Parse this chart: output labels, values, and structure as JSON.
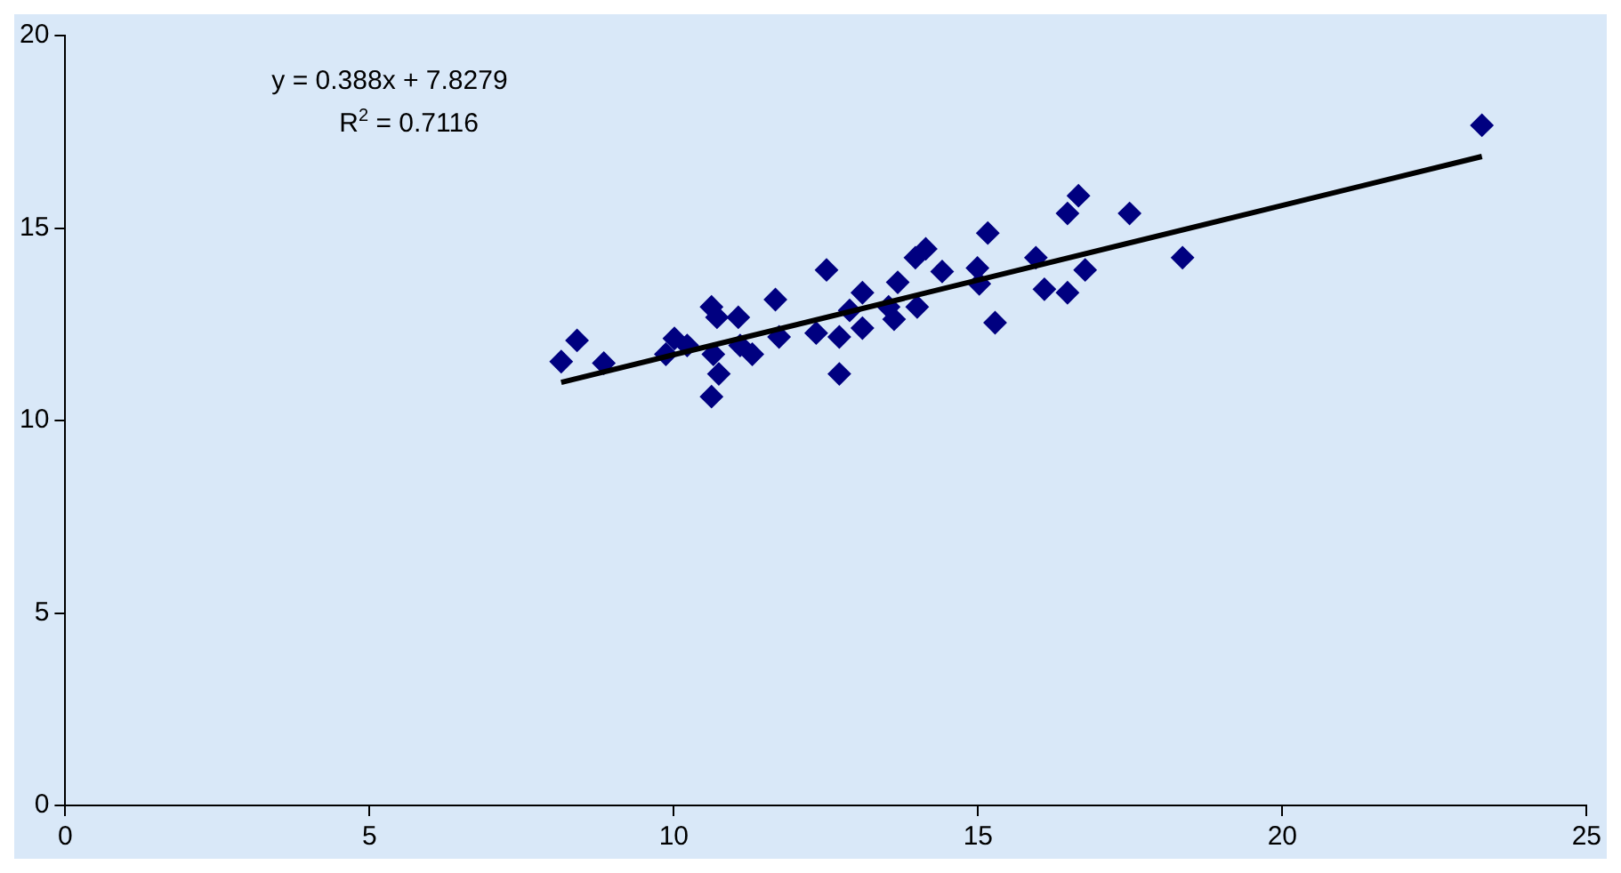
{
  "chart_data": {
    "type": "scatter",
    "xlim": [
      0,
      25
    ],
    "ylim": [
      0,
      20
    ],
    "xticks": [
      0,
      5,
      10,
      15,
      20,
      25
    ],
    "yticks": [
      0,
      5,
      10,
      15,
      20
    ],
    "grid": false,
    "legend": false,
    "marker": "diamond",
    "annotations": [
      "y = 0.388x + 7.8279",
      "R$^{2}$ = 0.7116"
    ],
    "series": [
      {
        "color": "#000080",
        "x": [
          8.15,
          8.41,
          8.85,
          9.87,
          10.01,
          10.22,
          10.62,
          10.71,
          10.65,
          10.74,
          10.62,
          11.06,
          11.09,
          11.29,
          11.67,
          11.73,
          12.34,
          12.51,
          12.72,
          12.72,
          12.89,
          13.1,
          13.1,
          13.53,
          13.62,
          13.68,
          14.0,
          13.97,
          14.14,
          14.41,
          14.99,
          15.02,
          15.16,
          15.28,
          15.95,
          16.09,
          16.47,
          16.76,
          16.47,
          16.65,
          17.49,
          18.36,
          23.28
        ],
        "values": [
          11.53,
          12.08,
          11.49,
          11.72,
          12.13,
          11.95,
          12.95,
          12.68,
          11.72,
          11.21,
          10.62,
          12.68,
          11.95,
          11.72,
          13.14,
          12.17,
          12.27,
          13.91,
          12.17,
          11.21,
          12.86,
          13.32,
          12.4,
          12.95,
          12.63,
          13.59,
          12.95,
          14.23,
          14.46,
          13.87,
          13.96,
          13.55,
          14.87,
          12.54,
          14.23,
          13.41,
          13.32,
          13.91,
          15.38,
          15.84,
          15.38,
          14.23,
          17.67
        ]
      },
      {
        "type": "line",
        "marker": "none",
        "color": "#000000",
        "x": [
          8.15,
          23.28
        ],
        "values": [
          10.99,
          16.86
        ]
      }
    ]
  }
}
